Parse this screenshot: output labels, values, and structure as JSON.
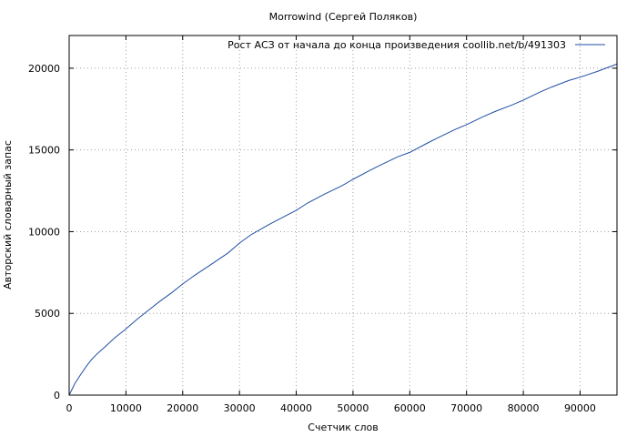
{
  "chart_data": {
    "type": "line",
    "title": "Morrowind (Сергей Поляков)",
    "xlabel": "Счетчик слов",
    "ylabel": "Авторский словарный запас",
    "xlim": [
      0,
      96500
    ],
    "ylim": [
      0,
      22000
    ],
    "xticks": [
      0,
      10000,
      20000,
      30000,
      40000,
      50000,
      60000,
      70000,
      80000,
      90000
    ],
    "yticks": [
      0,
      5000,
      10000,
      15000,
      20000
    ],
    "grid": true,
    "legend_position": "top-right",
    "series": [
      {
        "name": "Рост АСЗ от начала до конца произведения coollib.net/b/491303",
        "color": "#1f4ea3",
        "points": [
          [
            0,
            0
          ],
          [
            1000,
            700
          ],
          [
            2000,
            1250
          ],
          [
            3000,
            1750
          ],
          [
            4000,
            2200
          ],
          [
            5000,
            2550
          ],
          [
            6000,
            2850
          ],
          [
            8000,
            3500
          ],
          [
            10000,
            4050
          ],
          [
            12000,
            4650
          ],
          [
            14000,
            5200
          ],
          [
            16000,
            5750
          ],
          [
            18000,
            6250
          ],
          [
            20000,
            6800
          ],
          [
            22000,
            7300
          ],
          [
            25000,
            8000
          ],
          [
            28000,
            8700
          ],
          [
            30000,
            9300
          ],
          [
            32000,
            9800
          ],
          [
            35000,
            10400
          ],
          [
            38000,
            10950
          ],
          [
            40000,
            11300
          ],
          [
            42000,
            11750
          ],
          [
            45000,
            12300
          ],
          [
            48000,
            12800
          ],
          [
            50000,
            13200
          ],
          [
            53000,
            13750
          ],
          [
            55000,
            14100
          ],
          [
            58000,
            14600
          ],
          [
            60000,
            14850
          ],
          [
            63000,
            15400
          ],
          [
            65000,
            15750
          ],
          [
            68000,
            16250
          ],
          [
            70000,
            16550
          ],
          [
            73000,
            17050
          ],
          [
            75000,
            17350
          ],
          [
            78000,
            17750
          ],
          [
            80000,
            18050
          ],
          [
            83000,
            18550
          ],
          [
            85000,
            18850
          ],
          [
            88000,
            19250
          ],
          [
            90000,
            19450
          ],
          [
            93000,
            19800
          ],
          [
            96500,
            20250
          ]
        ]
      }
    ]
  }
}
